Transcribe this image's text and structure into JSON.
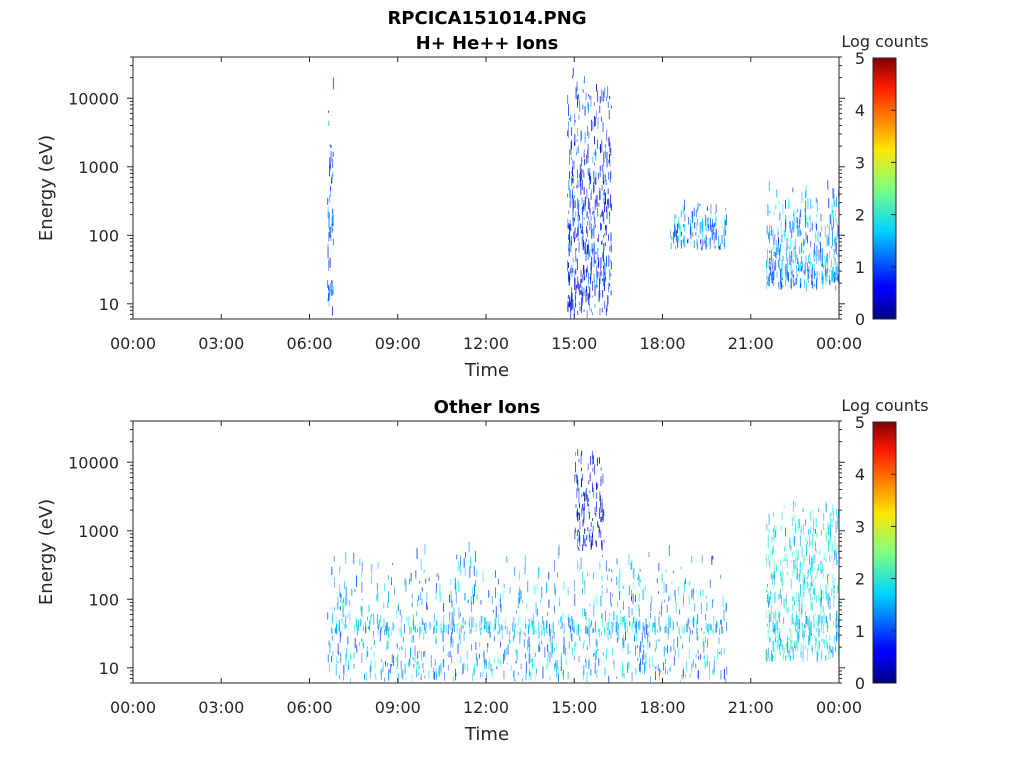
{
  "figure": {
    "title": "RPCICA151014.PNG"
  },
  "chart_data": [
    {
      "type": "heatmap",
      "title": "H+ He++ Ions",
      "xlabel": "Time",
      "ylabel": "Energy (eV)",
      "yscale": "log",
      "ylim": [
        6,
        40000
      ],
      "xlim": [
        "00:00",
        "24:00"
      ],
      "x_ticks": [
        "00:00",
        "03:00",
        "06:00",
        "09:00",
        "12:00",
        "15:00",
        "18:00",
        "21:00",
        "00:00"
      ],
      "y_ticks": [
        10,
        100,
        1000,
        10000
      ],
      "y_tick_labels": [
        "10",
        "100",
        "1000",
        "10000"
      ],
      "colorbar": {
        "label": "Log counts",
        "min": 0,
        "max": 5,
        "ticks": [
          "0",
          "1",
          "2",
          "3",
          "4",
          "5"
        ],
        "colormap": "jet"
      },
      "grid": false,
      "data_intervals": [
        {
          "start": "06:36",
          "end": "20:12"
        },
        {
          "start": "21:30",
          "end": "24:00"
        }
      ],
      "features": [
        {
          "time_start": "06:36",
          "time_end": "06:48",
          "energy_min": 6,
          "energy_max": 15000,
          "log_counts": 1.0
        },
        {
          "time_start": "14:45",
          "time_end": "16:15",
          "energy_min": 6,
          "energy_max": 25000,
          "log_counts": 0.8
        },
        {
          "time_start": "21:30",
          "time_end": "24:00",
          "energy_min": 15,
          "energy_max": 600,
          "log_counts": 1.3
        },
        {
          "time_start": "18:15",
          "time_end": "20:10",
          "energy_min": 60,
          "energy_max": 300,
          "log_counts": 1.2
        }
      ]
    },
    {
      "type": "heatmap",
      "title": "Other Ions",
      "xlabel": "Time",
      "ylabel": "Energy (eV)",
      "yscale": "log",
      "ylim": [
        6,
        40000
      ],
      "xlim": [
        "00:00",
        "24:00"
      ],
      "x_ticks": [
        "00:00",
        "03:00",
        "06:00",
        "09:00",
        "12:00",
        "15:00",
        "18:00",
        "21:00",
        "00:00"
      ],
      "y_ticks": [
        10,
        100,
        1000,
        10000
      ],
      "y_tick_labels": [
        "10",
        "100",
        "1000",
        "10000"
      ],
      "colorbar": {
        "label": "Log counts",
        "min": 0,
        "max": 5,
        "ticks": [
          "0",
          "1",
          "2",
          "3",
          "4",
          "5"
        ],
        "colormap": "jet"
      },
      "grid": false,
      "data_intervals": [
        {
          "start": "06:36",
          "end": "20:12"
        },
        {
          "start": "21:30",
          "end": "24:00"
        }
      ],
      "features": [
        {
          "time_start": "06:36",
          "time_end": "20:12",
          "energy_min": 6,
          "energy_max": 500,
          "log_counts": 1.4
        },
        {
          "time_start": "15:00",
          "time_end": "16:00",
          "energy_min": 500,
          "energy_max": 15000,
          "log_counts": 0.6
        },
        {
          "time_start": "21:30",
          "time_end": "24:00",
          "energy_min": 12,
          "energy_max": 2500,
          "log_counts": 1.8
        },
        {
          "time_start": "06:36",
          "time_end": "20:12",
          "energy_min": 30,
          "energy_max": 45,
          "log_counts": 1.6
        }
      ]
    }
  ]
}
